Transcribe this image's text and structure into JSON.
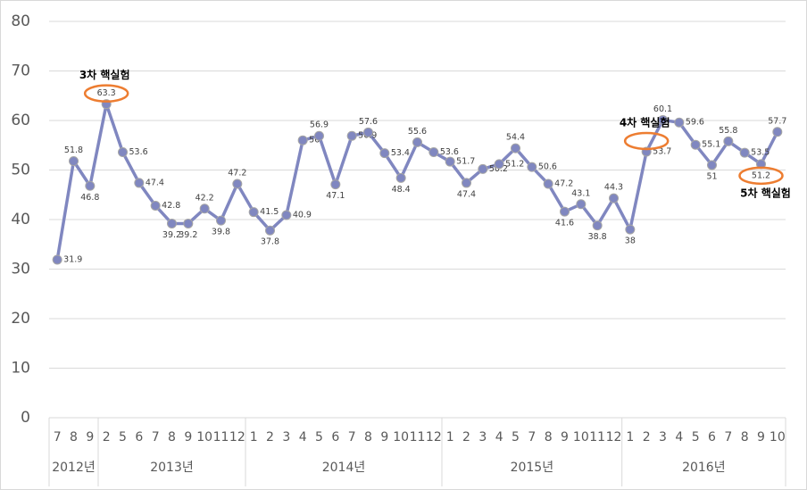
{
  "chart_data": {
    "type": "line",
    "categories": [
      "7",
      "8",
      "9",
      "2",
      "5",
      "6",
      "7",
      "8",
      "9",
      "10",
      "11",
      "12",
      "1",
      "2",
      "3",
      "4",
      "5",
      "6",
      "7",
      "8",
      "9",
      "10",
      "11",
      "12",
      "1",
      "2",
      "3",
      "4",
      "5",
      "7",
      "8",
      "9",
      "10",
      "11",
      "12",
      "1",
      "2",
      "3",
      "4",
      "5",
      "6",
      "7",
      "8",
      "9",
      "10"
    ],
    "groups": [
      {
        "label": "2012년",
        "count": 3
      },
      {
        "label": "2013년",
        "count": 9
      },
      {
        "label": "2014년",
        "count": 12
      },
      {
        "label": "2015년",
        "count": 11
      },
      {
        "label": "2016년",
        "count": 10
      }
    ],
    "series": [
      {
        "color": "#8087c0",
        "values": [
          31.9,
          51.8,
          46.8,
          63.3,
          53.6,
          47.4,
          42.8,
          39.2,
          39.2,
          42.2,
          39.8,
          47.2,
          41.5,
          37.8,
          40.9,
          56,
          56.9,
          47.1,
          56.9,
          57.6,
          53.4,
          48.4,
          55.6,
          53.6,
          51.7,
          47.4,
          50.2,
          51.2,
          54.4,
          50.6,
          47.2,
          41.6,
          43.1,
          38.8,
          44.3,
          38,
          53.7,
          60.1,
          59.6,
          55.1,
          51,
          55.8,
          53.5,
          51.2,
          57.7
        ]
      }
    ],
    "annotations": [
      {
        "text": "3차 핵실험",
        "index": 3
      },
      {
        "text": "4차 핵실험",
        "index": 36
      },
      {
        "text": "5차 핵실험",
        "index": 43
      }
    ],
    "annotation_color": "#ed7d31",
    "ylim": [
      0,
      80
    ],
    "yticks": [
      0,
      10,
      20,
      30,
      40,
      50,
      60,
      70,
      80
    ],
    "grid": true
  }
}
